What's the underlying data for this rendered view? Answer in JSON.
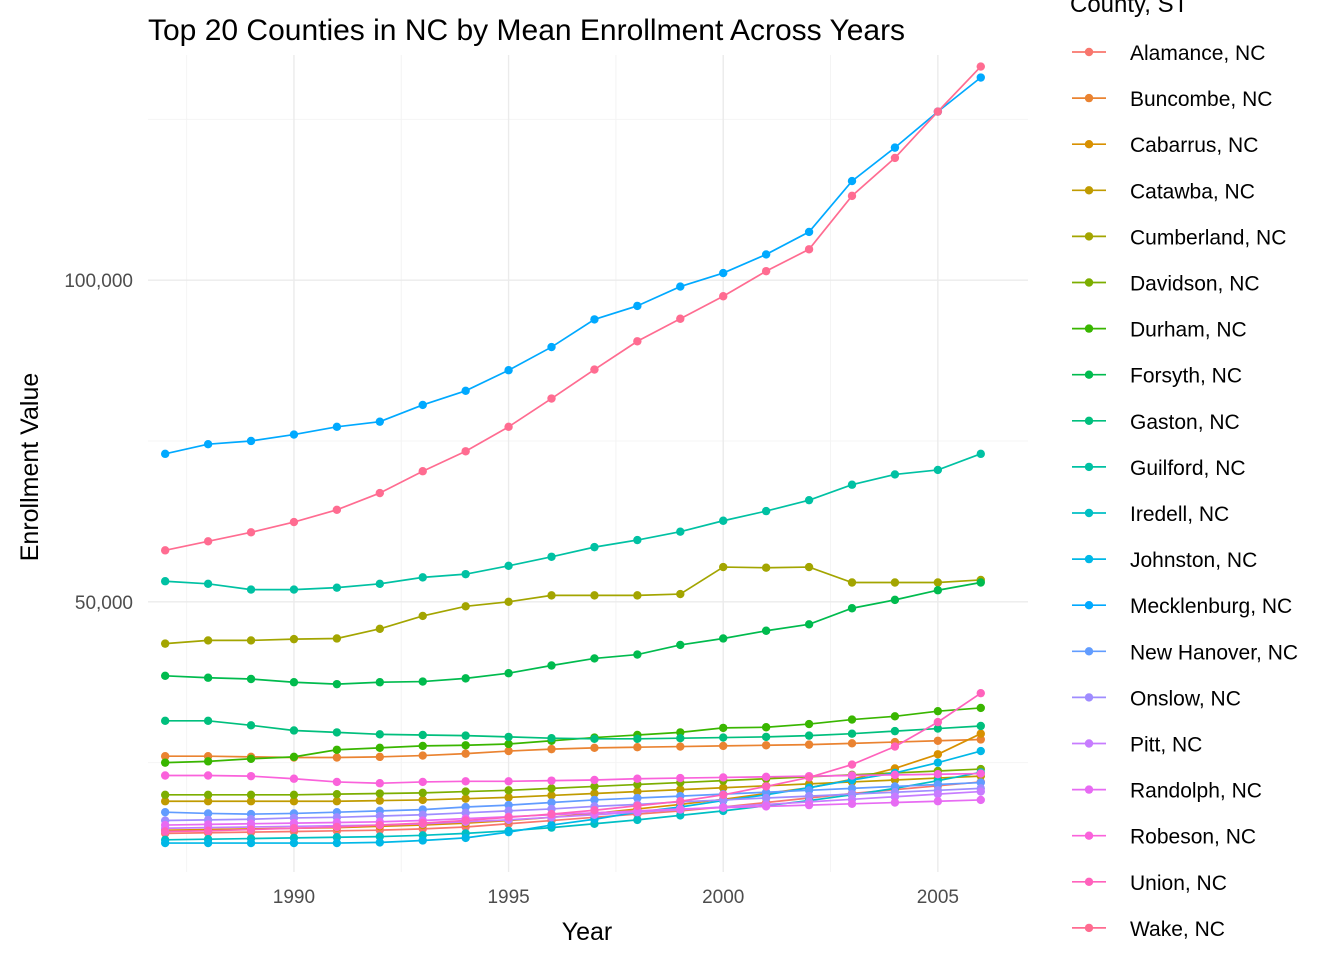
{
  "chart_data": {
    "type": "line",
    "title": "Top 20 Counties in NC by Mean Enrollment Across Years",
    "xlabel": "Year",
    "ylabel": "Enrollment Value",
    "xlim": [
      1986.6,
      2007.1
    ],
    "ylim": [
      8000,
      135000
    ],
    "x_ticks": [
      1990,
      1995,
      2000,
      2005
    ],
    "x_tick_labels": [
      "1990",
      "1995",
      "2000",
      "2005"
    ],
    "y_ticks": [
      50000,
      100000
    ],
    "y_tick_labels": [
      "50,000",
      "100,000"
    ],
    "grid": true,
    "legend_title": "County, ST",
    "legend_position": "right",
    "x": [
      1987,
      1988,
      1989,
      1990,
      1991,
      1992,
      1993,
      1994,
      1995,
      1996,
      1997,
      1998,
      1999,
      2000,
      2001,
      2002,
      2003,
      2004,
      2005,
      2006
    ],
    "series": [
      {
        "name": "Alamance, NC",
        "color": "#F8766D",
        "values": [
          14000,
          14100,
          14200,
          14300,
          14400,
          14500,
          14700,
          15000,
          15500,
          16000,
          16500,
          17000,
          17500,
          18100,
          18800,
          19500,
          20200,
          20800,
          21400,
          22000
        ]
      },
      {
        "name": "Buncombe, NC",
        "color": "#EA8331",
        "values": [
          26000,
          26000,
          25900,
          25800,
          25800,
          25900,
          26100,
          26400,
          26800,
          27100,
          27300,
          27400,
          27500,
          27600,
          27700,
          27800,
          28000,
          28200,
          28400,
          28600
        ]
      },
      {
        "name": "Cabarrus, NC",
        "color": "#D89000",
        "values": [
          14500,
          14600,
          14700,
          14800,
          14900,
          15100,
          15300,
          15600,
          16000,
          16500,
          17100,
          17800,
          18500,
          19300,
          20200,
          21100,
          22400,
          24100,
          26300,
          29500
        ]
      },
      {
        "name": "Catawba, NC",
        "color": "#C09B00",
        "values": [
          19000,
          19000,
          19000,
          19000,
          19000,
          19100,
          19200,
          19400,
          19600,
          19900,
          20200,
          20500,
          20800,
          21100,
          21400,
          21700,
          22000,
          22300,
          22600,
          22900
        ]
      },
      {
        "name": "Cumberland, NC",
        "color": "#A3A500",
        "values": [
          43500,
          44000,
          44000,
          44200,
          44300,
          45800,
          47800,
          49300,
          50000,
          51000,
          51000,
          51000,
          51200,
          55400,
          55300,
          55400,
          53000,
          53000,
          53000,
          53400
        ]
      },
      {
        "name": "Davidson, NC",
        "color": "#7CAE00",
        "values": [
          20000,
          20000,
          20000,
          20000,
          20100,
          20200,
          20300,
          20500,
          20700,
          21000,
          21300,
          21600,
          21900,
          22200,
          22500,
          22800,
          23100,
          23400,
          23700,
          24000
        ]
      },
      {
        "name": "Durham, NC",
        "color": "#39B600",
        "values": [
          25000,
          25200,
          25600,
          25900,
          27000,
          27300,
          27600,
          27700,
          27900,
          28400,
          28900,
          29300,
          29700,
          30400,
          30500,
          31000,
          31700,
          32200,
          33000,
          33500
        ]
      },
      {
        "name": "Forsyth, NC",
        "color": "#00BB4E",
        "values": [
          38500,
          38200,
          38000,
          37500,
          37200,
          37500,
          37600,
          38100,
          38900,
          40100,
          41200,
          41800,
          43300,
          44300,
          45500,
          46500,
          49000,
          50300,
          51800,
          53000
        ]
      },
      {
        "name": "Gaston, NC",
        "color": "#00BF7D",
        "values": [
          31500,
          31500,
          30800,
          30000,
          29700,
          29400,
          29300,
          29200,
          29000,
          28800,
          28700,
          28700,
          28800,
          28900,
          29000,
          29200,
          29500,
          29900,
          30300,
          30700
        ]
      },
      {
        "name": "Guilford, NC",
        "color": "#00C1A3",
        "values": [
          53200,
          52800,
          51900,
          51900,
          52200,
          52800,
          53800,
          54300,
          55600,
          57000,
          58500,
          59600,
          60900,
          62600,
          64100,
          65800,
          68200,
          69800,
          70500,
          73000
        ]
      },
      {
        "name": "Iredell, NC",
        "color": "#00BFC4",
        "values": [
          13000,
          13100,
          13200,
          13300,
          13400,
          13500,
          13700,
          14000,
          14400,
          14900,
          15500,
          16100,
          16800,
          17500,
          18300,
          19100,
          20000,
          21000,
          22200,
          23500
        ]
      },
      {
        "name": "Johnston, NC",
        "color": "#00B8E7",
        "values": [
          12500,
          12500,
          12500,
          12500,
          12500,
          12600,
          12900,
          13300,
          14200,
          15300,
          16200,
          17300,
          18100,
          19100,
          20000,
          21100,
          22300,
          23400,
          25000,
          26800
        ]
      },
      {
        "name": "Mecklenburg, NC",
        "color": "#00A9FF",
        "values": [
          73000,
          74500,
          75000,
          76000,
          77200,
          78000,
          80600,
          82800,
          86000,
          89600,
          93900,
          96000,
          99000,
          101100,
          104000,
          107500,
          115400,
          120600,
          126200,
          131500
        ]
      },
      {
        "name": "New Hanover, NC",
        "color": "#619CFF",
        "values": [
          17300,
          17100,
          17000,
          17100,
          17300,
          17500,
          17700,
          18100,
          18400,
          18800,
          19200,
          19500,
          19800,
          20100,
          20400,
          20700,
          21000,
          21300,
          21600,
          21900
        ]
      },
      {
        "name": "Onslow, NC",
        "color": "#9F8CFF",
        "values": [
          16000,
          16100,
          16200,
          16400,
          16500,
          16700,
          16900,
          17200,
          17500,
          17800,
          18200,
          18500,
          18900,
          19200,
          19500,
          19800,
          20100,
          20400,
          20700,
          21000
        ]
      },
      {
        "name": "Pitt, NC",
        "color": "#C77CFF",
        "values": [
          14800,
          14900,
          15000,
          15100,
          15200,
          15300,
          15500,
          15800,
          16100,
          16500,
          16900,
          17300,
          17700,
          18100,
          18500,
          18900,
          19300,
          19700,
          20100,
          20500
        ]
      },
      {
        "name": "Randolph, NC",
        "color": "#E76BF3",
        "values": [
          15300,
          15400,
          15500,
          15600,
          15700,
          15800,
          16000,
          16300,
          16600,
          16900,
          17200,
          17500,
          17800,
          18000,
          18200,
          18400,
          18600,
          18800,
          19000,
          19200
        ]
      },
      {
        "name": "Robeson, NC",
        "color": "#FA62DB",
        "values": [
          23000,
          23000,
          22900,
          22500,
          22000,
          21800,
          22000,
          22100,
          22100,
          22200,
          22300,
          22500,
          22600,
          22700,
          22800,
          22900,
          23000,
          23100,
          23200,
          23300
        ]
      },
      {
        "name": "Union, NC",
        "color": "#FF62BC",
        "values": [
          14300,
          14400,
          14600,
          14800,
          15000,
          15300,
          15600,
          16000,
          16500,
          17000,
          17600,
          18300,
          19000,
          20000,
          21300,
          22700,
          24700,
          27500,
          31300,
          35800
        ]
      },
      {
        "name": "Wake, NC",
        "color": "#FF6C91",
        "values": [
          58000,
          59400,
          60800,
          62400,
          64300,
          66900,
          70300,
          73400,
          77200,
          81600,
          86100,
          90500,
          94000,
          97500,
          101400,
          104800,
          113100,
          119000,
          126200,
          133200
        ]
      }
    ]
  }
}
